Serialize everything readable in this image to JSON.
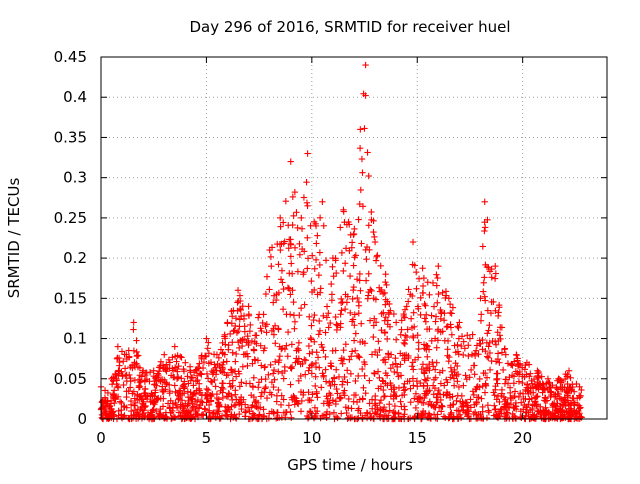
{
  "chart_data": {
    "type": "scatter",
    "title": "Day 296 of 2016, SRMTID for receiver huel",
    "xlabel": "GPS time / hours",
    "ylabel": "SRMTID / TECUs",
    "xlim": [
      0,
      24
    ],
    "ylim": [
      0,
      0.45
    ],
    "x_ticks": [
      0,
      5,
      10,
      15,
      20
    ],
    "y_ticks": [
      0,
      0.05,
      0.1,
      0.15,
      0.2,
      0.25,
      0.3,
      0.35,
      0.4,
      0.45
    ],
    "x_tick_labels": [
      "0",
      "5",
      "10",
      "15",
      "20"
    ],
    "y_tick_labels": [
      "0",
      "0.05",
      "0.1",
      "0.15",
      "0.2",
      "0.25",
      "0.3",
      "0.35",
      "0.4",
      "0.45"
    ],
    "grid": true,
    "marker": "+",
    "color": "#ff0000",
    "envelope_note_points": [
      {
        "x": 0.0,
        "y": 0.04
      },
      {
        "x": 0.5,
        "y": 0.05
      },
      {
        "x": 0.8,
        "y": 0.09
      },
      {
        "x": 1.2,
        "y": 0.08
      },
      {
        "x": 1.55,
        "y": 0.12
      },
      {
        "x": 2.0,
        "y": 0.06
      },
      {
        "x": 2.5,
        "y": 0.06
      },
      {
        "x": 3.0,
        "y": 0.08
      },
      {
        "x": 3.5,
        "y": 0.09
      },
      {
        "x": 4.0,
        "y": 0.07
      },
      {
        "x": 4.5,
        "y": 0.06
      },
      {
        "x": 5.0,
        "y": 0.1
      },
      {
        "x": 5.5,
        "y": 0.08
      },
      {
        "x": 6.0,
        "y": 0.12
      },
      {
        "x": 6.5,
        "y": 0.16
      },
      {
        "x": 7.0,
        "y": 0.14
      },
      {
        "x": 7.5,
        "y": 0.13
      },
      {
        "x": 8.0,
        "y": 0.21
      },
      {
        "x": 8.5,
        "y": 0.25
      },
      {
        "x": 9.0,
        "y": 0.32
      },
      {
        "x": 9.5,
        "y": 0.25
      },
      {
        "x": 9.8,
        "y": 0.33
      },
      {
        "x": 10.2,
        "y": 0.24
      },
      {
        "x": 10.5,
        "y": 0.27
      },
      {
        "x": 11.0,
        "y": 0.2
      },
      {
        "x": 11.5,
        "y": 0.26
      },
      {
        "x": 12.0,
        "y": 0.23
      },
      {
        "x": 12.3,
        "y": 0.36
      },
      {
        "x": 12.55,
        "y": 0.44
      },
      {
        "x": 13.0,
        "y": 0.22
      },
      {
        "x": 13.5,
        "y": 0.18
      },
      {
        "x": 14.0,
        "y": 0.12
      },
      {
        "x": 14.5,
        "y": 0.14
      },
      {
        "x": 14.8,
        "y": 0.22
      },
      {
        "x": 15.5,
        "y": 0.17
      },
      {
        "x": 16.0,
        "y": 0.19
      },
      {
        "x": 16.5,
        "y": 0.15
      },
      {
        "x": 17.0,
        "y": 0.12
      },
      {
        "x": 17.5,
        "y": 0.1
      },
      {
        "x": 18.0,
        "y": 0.15
      },
      {
        "x": 18.2,
        "y": 0.27
      },
      {
        "x": 18.7,
        "y": 0.19
      },
      {
        "x": 19.2,
        "y": 0.08
      },
      {
        "x": 19.7,
        "y": 0.08
      },
      {
        "x": 20.2,
        "y": 0.07
      },
      {
        "x": 20.7,
        "y": 0.06
      },
      {
        "x": 21.2,
        "y": 0.05
      },
      {
        "x": 21.7,
        "y": 0.05
      },
      {
        "x": 22.2,
        "y": 0.06
      },
      {
        "x": 22.7,
        "y": 0.04
      }
    ],
    "x_data_end": 22.8
  }
}
